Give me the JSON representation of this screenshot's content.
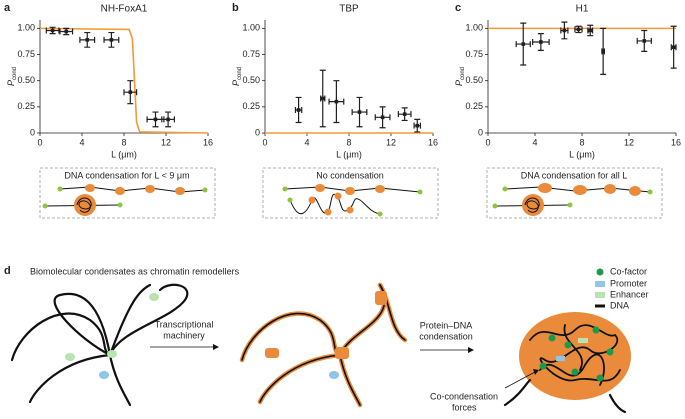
{
  "chart_data": [
    {
      "type": "errorbar",
      "panel": "a",
      "title": "NH-FoxA1",
      "xlabel": "L (μm)",
      "ylabel": "P",
      "ylabel_sub": "cond",
      "x": [
        1.2,
        2.5,
        4.5,
        6.8,
        8.6,
        11,
        12.2
      ],
      "values": [
        0.98,
        0.97,
        0.89,
        0.89,
        0.39,
        0.13,
        0.13
      ],
      "xerr": [
        0.6,
        0.6,
        0.7,
        0.7,
        0.6,
        0.8,
        0.6
      ],
      "yerr": [
        0.03,
        0.03,
        0.07,
        0.07,
        0.11,
        0.07,
        0.07
      ],
      "color": "#231f20",
      "fit": {
        "color": "#f39a36",
        "x": [
          0,
          8.5,
          8.8,
          9,
          9.2,
          9.5,
          16
        ],
        "values": [
          1,
          0.99,
          0.9,
          0.5,
          0.1,
          0.01,
          0
        ]
      },
      "xlim": [
        0,
        16
      ],
      "ylim": [
        0,
        1.08
      ],
      "xticks": [
        0,
        4,
        8,
        12,
        16
      ],
      "yticks": [
        0,
        0.25,
        {
          "value": 0.5,
          "label": "0.50"
        },
        0.75,
        {
          "value": 1,
          "label": "1.00"
        }
      ]
    },
    {
      "type": "errorbar",
      "panel": "b",
      "title": "TBP",
      "xlabel": "L (μm)",
      "ylabel": "P",
      "ylabel_sub": "cond",
      "x": [
        3.2,
        5.5,
        6.8,
        9,
        11.2,
        13.3,
        14.5
      ],
      "values": [
        0.22,
        0.33,
        0.3,
        0.2,
        0.15,
        0.18,
        0.07
      ],
      "xerr": [
        0.3,
        0.2,
        0.7,
        0.7,
        0.7,
        0.6,
        0.3
      ],
      "yerr": [
        0.12,
        0.27,
        0.2,
        0.14,
        0.1,
        0.06,
        0.06
      ],
      "color": "#231f20",
      "fit": {
        "color": "#f39a36",
        "x": [
          0,
          16
        ],
        "values": [
          0,
          0
        ]
      },
      "xlim": [
        0,
        16
      ],
      "ylim": [
        0,
        1.08
      ],
      "xticks": [
        0,
        4,
        8,
        12,
        16
      ],
      "yticks": [
        0,
        0.25,
        {
          "value": 0.5,
          "label": "0.50"
        },
        0.75,
        {
          "value": 1,
          "label": "1.00"
        }
      ]
    },
    {
      "type": "errorbar",
      "panel": "c",
      "title": "H1",
      "xlabel": "L (μm)",
      "ylabel": "P",
      "ylabel_sub": "cond",
      "x": [
        3,
        4.5,
        6.5,
        7.7,
        8.7,
        9.8,
        13.3,
        15.8
      ],
      "values": [
        0.85,
        0.87,
        0.98,
        0.99,
        0.98,
        0.78,
        0.88,
        0.82
      ],
      "xerr": [
        0.6,
        0.7,
        0.3,
        0.3,
        0.2,
        0.1,
        0.6,
        0.2
      ],
      "yerr": [
        0.2,
        0.08,
        0.08,
        0.03,
        0.05,
        0.22,
        0.1,
        0.2
      ],
      "color": "#231f20",
      "fit": {
        "color": "#f39a36",
        "x": [
          0,
          16
        ],
        "values": [
          1,
          1
        ]
      },
      "xlim": [
        0,
        16
      ],
      "ylim": [
        0,
        1.08
      ],
      "xticks": [
        0,
        4,
        8,
        12,
        16
      ],
      "yticks": [
        0,
        0.25,
        {
          "value": 0.5,
          "label": "0.50"
        },
        0.75,
        {
          "value": 1,
          "label": "1.00"
        }
      ]
    }
  ],
  "diagram": {
    "box_a": "DNA condensation for L < 9 μm",
    "box_b": "No condensation",
    "box_c": "DNA condensation for all L",
    "panel": "d",
    "title": "Biomolecular condensates as chromatin remodellers",
    "arrow1": [
      "Transcriptional",
      "machinery"
    ],
    "arrow2": [
      "Protein–DNA",
      "condensation"
    ],
    "forces": [
      "Co-condensation",
      "forces"
    ],
    "legend": [
      "Co-factor",
      "Promoter",
      "Enhancer",
      "DNA"
    ]
  }
}
